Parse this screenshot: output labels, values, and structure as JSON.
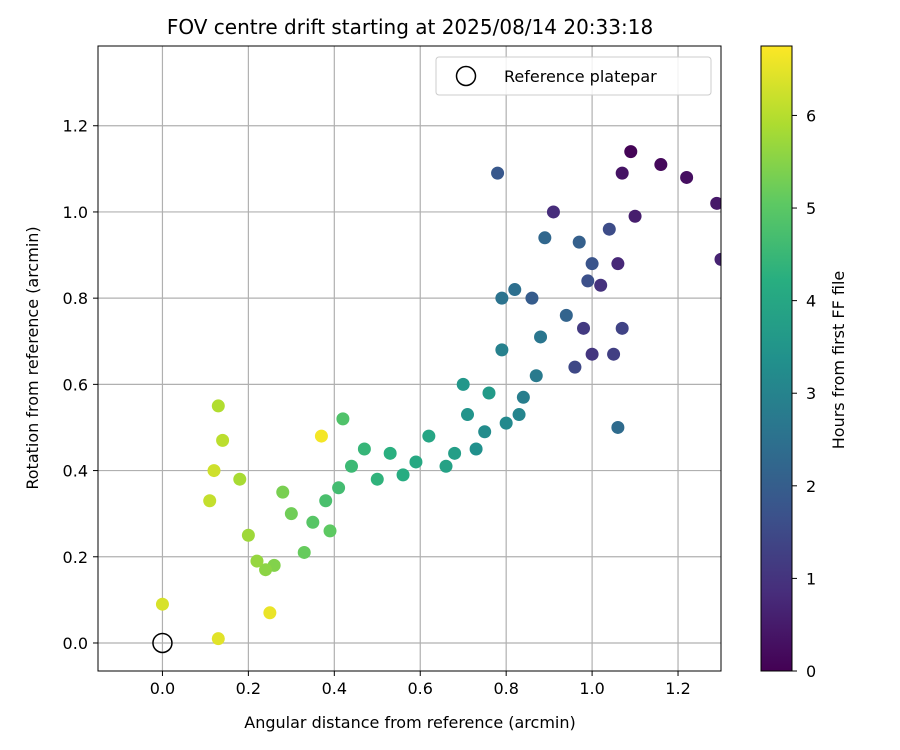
{
  "chart_data": {
    "type": "scatter",
    "title": "FOV centre drift starting at 2025/08/14 20:33:18",
    "xlabel": "Angular distance from reference (arcmin)",
    "ylabel": "Rotation from reference (arcmin)",
    "xlim": [
      -0.15,
      1.3
    ],
    "ylim": [
      -0.065,
      1.385
    ],
    "xticks": [
      0.0,
      0.2,
      0.4,
      0.6,
      0.8,
      1.0,
      1.2
    ],
    "xtick_labels": [
      "0.0",
      "0.2",
      "0.4",
      "0.6",
      "0.8",
      "1.0",
      "1.2"
    ],
    "yticks": [
      0.0,
      0.2,
      0.4,
      0.6,
      0.8,
      1.0,
      1.2
    ],
    "ytick_labels": [
      "0.0",
      "0.2",
      "0.4",
      "0.6",
      "0.8",
      "1.0",
      "1.2"
    ],
    "grid": true,
    "legend": {
      "placement": "top-right",
      "entries": [
        {
          "label": "Reference platepar",
          "marker": "open-circle"
        }
      ]
    },
    "reference_point": {
      "x": 0.0,
      "y": 0.0
    },
    "colorbar": {
      "label": "Hours from first FF file",
      "colormap": "viridis",
      "range": [
        0,
        6.75
      ],
      "ticks": [
        0,
        1,
        2,
        3,
        4,
        5,
        6
      ],
      "tick_labels": [
        "0",
        "1",
        "2",
        "3",
        "4",
        "5",
        "6"
      ]
    },
    "points": [
      {
        "x": 1.09,
        "y": 1.14,
        "t": 0.05
      },
      {
        "x": 1.16,
        "y": 1.11,
        "t": 0.15
      },
      {
        "x": 1.22,
        "y": 1.08,
        "t": 0.25
      },
      {
        "x": 1.07,
        "y": 1.09,
        "t": 0.35
      },
      {
        "x": 1.29,
        "y": 1.02,
        "t": 0.45
      },
      {
        "x": 1.1,
        "y": 0.99,
        "t": 0.55
      },
      {
        "x": 1.3,
        "y": 0.89,
        "t": 0.65
      },
      {
        "x": 1.06,
        "y": 0.88,
        "t": 0.75
      },
      {
        "x": 0.91,
        "y": 1.0,
        "t": 0.85
      },
      {
        "x": 1.02,
        "y": 0.83,
        "t": 0.95
      },
      {
        "x": 1.0,
        "y": 0.67,
        "t": 1.05
      },
      {
        "x": 0.98,
        "y": 0.73,
        "t": 1.15
      },
      {
        "x": 1.05,
        "y": 0.67,
        "t": 1.25
      },
      {
        "x": 1.07,
        "y": 0.73,
        "t": 1.35
      },
      {
        "x": 0.96,
        "y": 0.64,
        "t": 1.45
      },
      {
        "x": 1.04,
        "y": 0.96,
        "t": 1.55
      },
      {
        "x": 0.99,
        "y": 0.84,
        "t": 1.65
      },
      {
        "x": 1.0,
        "y": 0.88,
        "t": 1.75
      },
      {
        "x": 0.78,
        "y": 1.09,
        "t": 1.85
      },
      {
        "x": 0.86,
        "y": 0.8,
        "t": 1.95
      },
      {
        "x": 0.97,
        "y": 0.93,
        "t": 2.05
      },
      {
        "x": 0.94,
        "y": 0.76,
        "t": 2.15
      },
      {
        "x": 0.89,
        "y": 0.94,
        "t": 2.25
      },
      {
        "x": 1.06,
        "y": 0.5,
        "t": 2.35
      },
      {
        "x": 0.82,
        "y": 0.82,
        "t": 2.45
      },
      {
        "x": 0.79,
        "y": 0.8,
        "t": 2.55
      },
      {
        "x": 0.88,
        "y": 0.71,
        "t": 2.65
      },
      {
        "x": 0.87,
        "y": 0.62,
        "t": 2.75
      },
      {
        "x": 0.84,
        "y": 0.57,
        "t": 2.85
      },
      {
        "x": 0.79,
        "y": 0.68,
        "t": 2.95
      },
      {
        "x": 0.83,
        "y": 0.53,
        "t": 3.05
      },
      {
        "x": 0.8,
        "y": 0.51,
        "t": 3.15
      },
      {
        "x": 0.75,
        "y": 0.49,
        "t": 3.25
      },
      {
        "x": 0.73,
        "y": 0.45,
        "t": 3.35
      },
      {
        "x": 0.71,
        "y": 0.53,
        "t": 3.45
      },
      {
        "x": 0.7,
        "y": 0.6,
        "t": 3.55
      },
      {
        "x": 0.76,
        "y": 0.58,
        "t": 3.65
      },
      {
        "x": 0.68,
        "y": 0.44,
        "t": 3.75
      },
      {
        "x": 0.66,
        "y": 0.41,
        "t": 3.85
      },
      {
        "x": 0.62,
        "y": 0.48,
        "t": 3.95
      },
      {
        "x": 0.59,
        "y": 0.42,
        "t": 4.05
      },
      {
        "x": 0.56,
        "y": 0.39,
        "t": 4.15
      },
      {
        "x": 0.53,
        "y": 0.44,
        "t": 4.25
      },
      {
        "x": 0.5,
        "y": 0.38,
        "t": 4.35
      },
      {
        "x": 0.47,
        "y": 0.45,
        "t": 4.45
      },
      {
        "x": 0.44,
        "y": 0.41,
        "t": 4.55
      },
      {
        "x": 0.41,
        "y": 0.36,
        "t": 4.65
      },
      {
        "x": 0.38,
        "y": 0.33,
        "t": 4.75
      },
      {
        "x": 0.42,
        "y": 0.52,
        "t": 4.85
      },
      {
        "x": 0.35,
        "y": 0.28,
        "t": 4.95
      },
      {
        "x": 0.39,
        "y": 0.26,
        "t": 5.05
      },
      {
        "x": 0.33,
        "y": 0.21,
        "t": 5.15
      },
      {
        "x": 0.3,
        "y": 0.3,
        "t": 5.25
      },
      {
        "x": 0.28,
        "y": 0.35,
        "t": 5.35
      },
      {
        "x": 0.26,
        "y": 0.18,
        "t": 5.45
      },
      {
        "x": 0.24,
        "y": 0.17,
        "t": 5.55
      },
      {
        "x": 0.22,
        "y": 0.19,
        "t": 5.65
      },
      {
        "x": 0.2,
        "y": 0.25,
        "t": 5.75
      },
      {
        "x": 0.18,
        "y": 0.38,
        "t": 5.85
      },
      {
        "x": 0.13,
        "y": 0.55,
        "t": 5.95
      },
      {
        "x": 0.14,
        "y": 0.47,
        "t": 6.05
      },
      {
        "x": 0.11,
        "y": 0.33,
        "t": 6.15
      },
      {
        "x": 0.12,
        "y": 0.4,
        "t": 6.25
      },
      {
        "x": 0.0,
        "y": 0.09,
        "t": 6.35
      },
      {
        "x": 0.13,
        "y": 0.01,
        "t": 6.45
      },
      {
        "x": 0.25,
        "y": 0.07,
        "t": 6.55
      },
      {
        "x": 0.37,
        "y": 0.48,
        "t": 6.65
      }
    ]
  }
}
